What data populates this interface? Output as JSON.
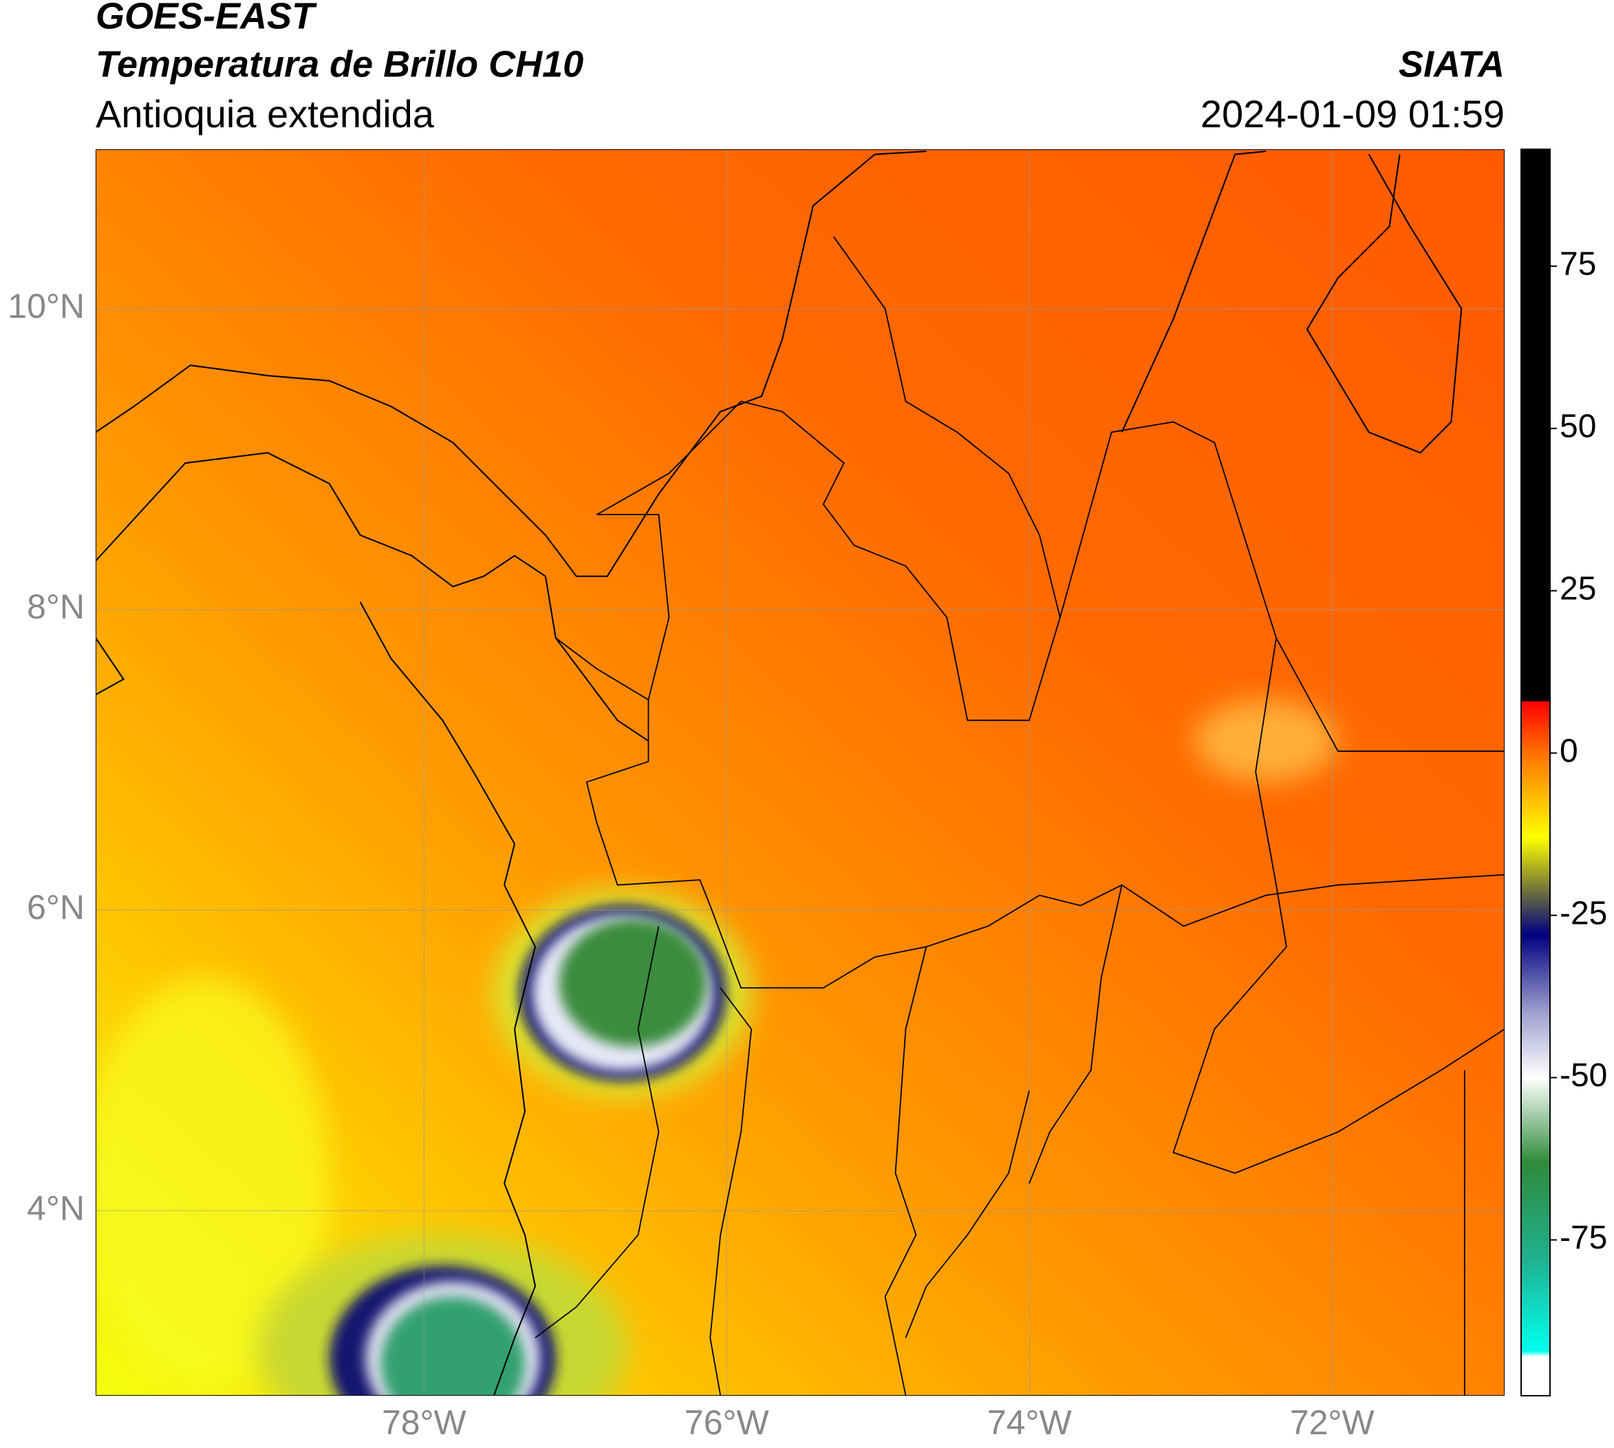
{
  "header": {
    "title": "GOES-EAST",
    "subtitle": "Temperatura de Brillo CH10",
    "region": "Antioquia extendida",
    "source": "SIATA",
    "datetime": "2024-01-09 01:59"
  },
  "map": {
    "xlim": [
      -80.17,
      -70.86
    ],
    "ylim": [
      2.77,
      11.06
    ],
    "xticks": [
      {
        "value": -78,
        "label": "78°W"
      },
      {
        "value": -76,
        "label": "76°W"
      },
      {
        "value": -74,
        "label": "74°W"
      },
      {
        "value": -72,
        "label": "72°W"
      }
    ],
    "yticks": [
      {
        "value": 4,
        "label": "4°N"
      },
      {
        "value": 6,
        "label": "6°N"
      },
      {
        "value": 8,
        "label": "8°N"
      },
      {
        "value": 10,
        "label": "10°N"
      }
    ],
    "grid": true
  },
  "colorbar": {
    "lim": [
      -99,
      93
    ],
    "ticks": [
      -75,
      -50,
      -25,
      0,
      25,
      50,
      75
    ]
  }
}
